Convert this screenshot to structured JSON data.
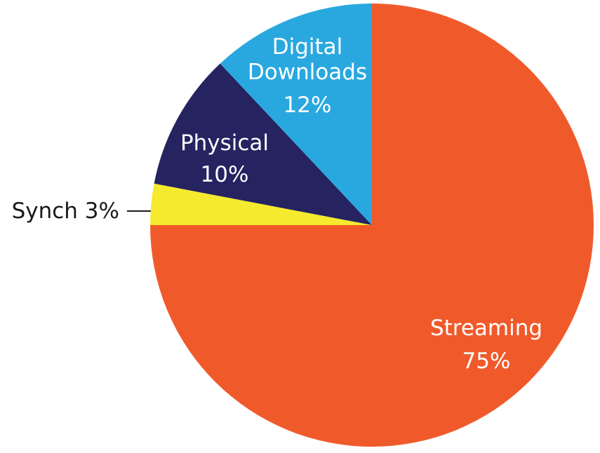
{
  "chart_data": {
    "type": "pie",
    "slices": [
      {
        "label": "Streaming",
        "value": 75,
        "value_text": "75%",
        "color": "#f05a2b"
      },
      {
        "label": "Synch",
        "value": 3,
        "value_text": "3%",
        "color": "#f5ea2e",
        "label_position": "outside-left"
      },
      {
        "label": "Physical",
        "value": 10,
        "value_text": "10%",
        "color": "#252360"
      },
      {
        "label": "Digital Downloads",
        "value": 12,
        "value_text": "12%",
        "color": "#29a8e0"
      }
    ],
    "start": "12 o'clock",
    "direction": "clockwise"
  }
}
